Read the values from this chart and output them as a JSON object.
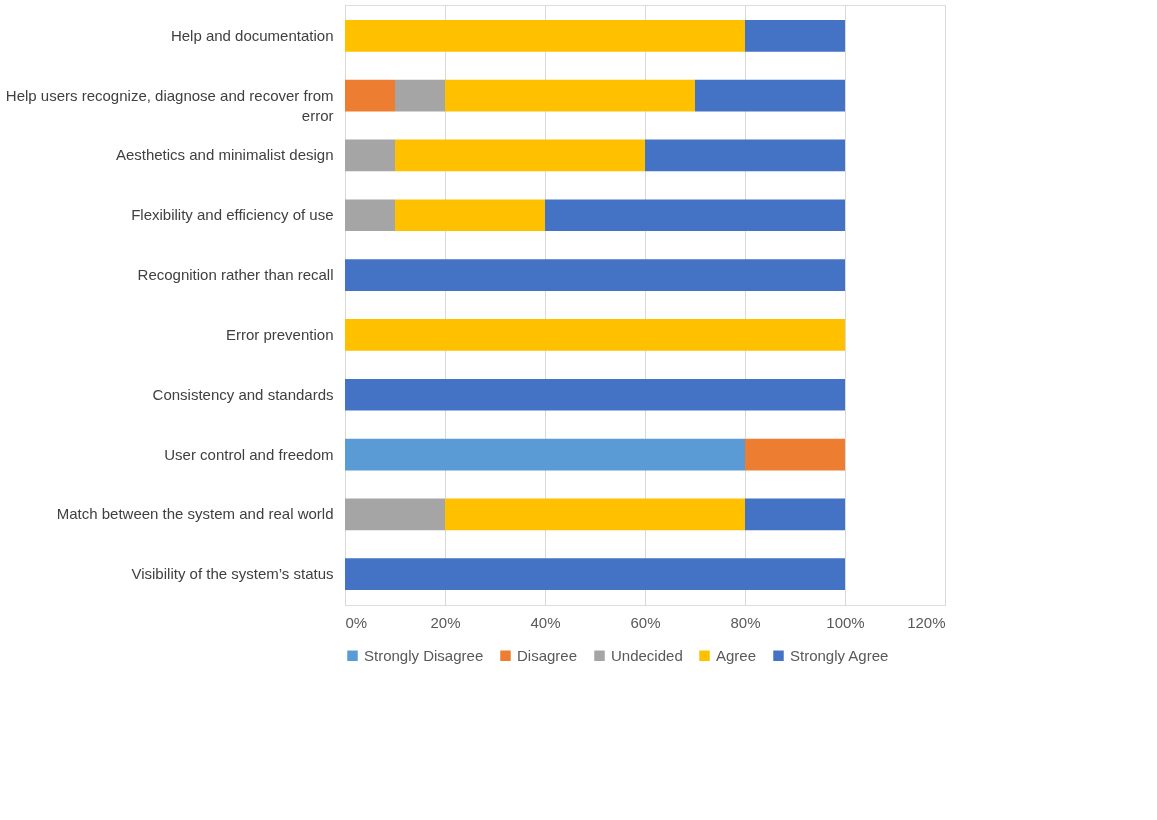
{
  "chart_data": {
    "type": "bar",
    "orientation": "horizontal",
    "stacked": true,
    "categories": [
      "Help and documentation",
      "Help users recognize, diagnose and recover from error",
      "Aesthetics and minimalist design",
      "Flexibility and efficiency of use",
      "Recognition rather than recall",
      "Error prevention",
      "Consistency and standards",
      "User control and freedom",
      "Match between the system and real world",
      "Visibility of the system’s status"
    ],
    "series": [
      {
        "name": "Strongly Disagree",
        "color": "#5b9bd5",
        "values": [
          0,
          0,
          0,
          0,
          0,
          0,
          0,
          80,
          0,
          0
        ]
      },
      {
        "name": "Disagree",
        "color": "#ed7d31",
        "values": [
          0,
          10,
          0,
          0,
          0,
          0,
          0,
          20,
          0,
          0
        ]
      },
      {
        "name": "Undecided",
        "color": "#a5a5a5",
        "values": [
          0,
          10,
          10,
          10,
          0,
          0,
          0,
          0,
          20,
          0
        ]
      },
      {
        "name": "Agree",
        "color": "#ffc000",
        "values": [
          80,
          50,
          50,
          30,
          0,
          100,
          0,
          0,
          60,
          0
        ]
      },
      {
        "name": "Strongly Agree",
        "color": "#4472c4",
        "values": [
          20,
          30,
          40,
          60,
          100,
          0,
          100,
          0,
          20,
          100
        ]
      }
    ],
    "xlim": [
      0,
      120
    ],
    "xticks": [
      {
        "value": 0,
        "label": "0%"
      },
      {
        "value": 20,
        "label": "20%"
      },
      {
        "value": 40,
        "label": "40%"
      },
      {
        "value": 60,
        "label": "60%"
      },
      {
        "value": 80,
        "label": "80%"
      },
      {
        "value": 100,
        "label": "100%"
      },
      {
        "value": 120,
        "label": "120%"
      }
    ],
    "grid": "x",
    "legend": "bottom"
  }
}
